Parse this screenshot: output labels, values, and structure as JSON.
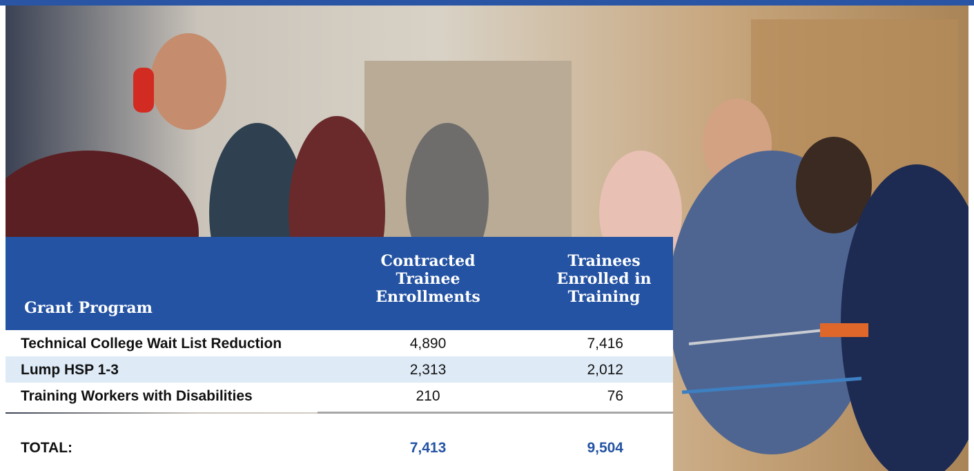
{
  "header": {
    "grant_program": "Grant Program",
    "contracted": [
      "Contracted",
      "Trainee",
      "Enrollments"
    ],
    "enrolled": [
      "Trainees",
      "Enrolled in",
      "Training"
    ]
  },
  "table": {
    "rows": [
      [
        "Technical College Wait List Reduction",
        "4,890",
        "7,416"
      ],
      [
        "Lump HSP 1-3",
        "2,313",
        "2,012"
      ],
      [
        "Training Workers with Disabilities",
        "210",
        "76"
      ]
    ]
  },
  "total": [
    "TOTAL:",
    "7,413",
    "9,504"
  ]
}
